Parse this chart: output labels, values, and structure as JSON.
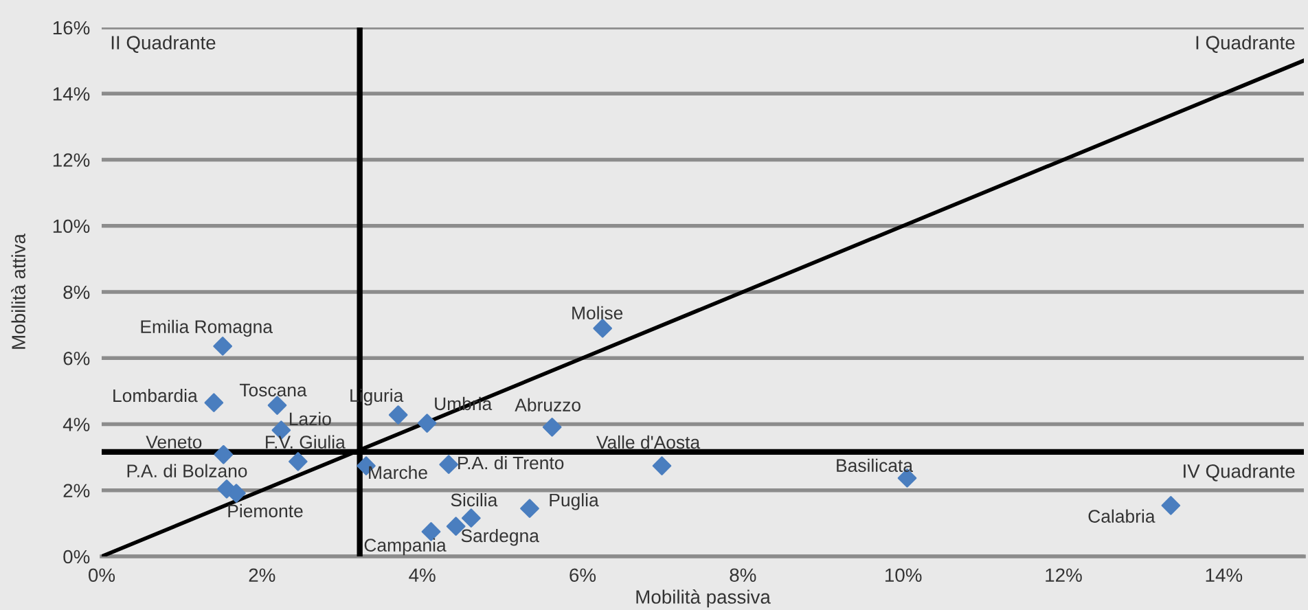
{
  "chart_data": {
    "type": "scatter",
    "xlabel": "Mobilità passiva",
    "ylabel": "Mobilità attiva",
    "xlim": [
      0,
      15
    ],
    "ylim": [
      0,
      16
    ],
    "xticks": [
      {
        "value": 0,
        "label": "0%"
      },
      {
        "value": 2,
        "label": "2%"
      },
      {
        "value": 4,
        "label": "4%"
      },
      {
        "value": 6,
        "label": "6%"
      },
      {
        "value": 8,
        "label": "8%"
      },
      {
        "value": 10,
        "label": "10%"
      },
      {
        "value": 12,
        "label": "12%"
      },
      {
        "value": 14,
        "label": "14%"
      }
    ],
    "yticks": [
      {
        "value": 0,
        "label": "0%"
      },
      {
        "value": 2,
        "label": "2%"
      },
      {
        "value": 4,
        "label": "4%"
      },
      {
        "value": 6,
        "label": "6%"
      },
      {
        "value": 8,
        "label": "8%"
      },
      {
        "value": 10,
        "label": "10%"
      },
      {
        "value": 12,
        "label": "12%"
      },
      {
        "value": 14,
        "label": "14%"
      },
      {
        "value": 16,
        "label": "16%"
      }
    ],
    "grid": "y",
    "series": [
      {
        "color": "#4a7ebf",
        "marker": "diamond",
        "x": [
          1.51,
          1.4,
          2.19,
          2.24,
          1.52,
          2.45,
          1.56,
          1.68,
          3.7,
          4.06,
          3.3,
          4.33,
          4.11,
          4.42,
          4.61,
          5.34,
          5.62,
          6.25,
          6.99,
          10.05,
          13.34
        ],
        "values": [
          6.36,
          4.65,
          4.57,
          3.82,
          3.08,
          2.87,
          2.04,
          1.91,
          4.28,
          4.03,
          2.74,
          2.78,
          0.75,
          0.91,
          1.16,
          1.45,
          3.91,
          6.9,
          2.74,
          2.37,
          1.54
        ],
        "value_labels": [
          "Emilia Romagna",
          "Lombardia",
          "Toscana",
          "Lazio",
          "Veneto",
          "F.V. Giulia",
          "P.A. di Bolzano",
          "Piemonte",
          "Liguria",
          "Umbria",
          "Marche",
          "P.A. di Trento",
          "Campania",
          "Sardegna",
          "Sicilia",
          "Puglia",
          "Abruzzo",
          "Molise",
          "Valle d'Aosta",
          "Basilicata",
          "Calabria"
        ]
      },
      {
        "type": "line",
        "color": "#000000",
        "x": [
          0,
          15
        ],
        "values": [
          0,
          15
        ]
      }
    ],
    "ref_lines": [
      {
        "axis": "x",
        "value": 3.22,
        "label": null,
        "color": "#000000"
      },
      {
        "axis": "y",
        "value": 3.16,
        "label": null,
        "color": "#000000"
      }
    ],
    "annotations": [
      "II Quadrante",
      "I Quadrante",
      "IV Quadrante"
    ]
  }
}
